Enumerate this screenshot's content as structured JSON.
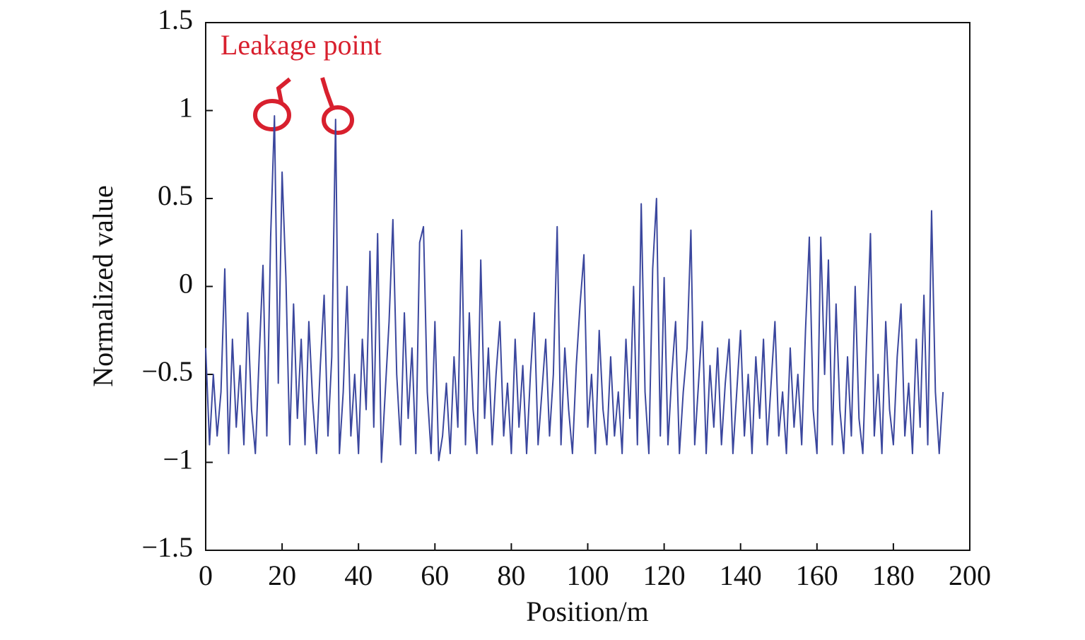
{
  "chart_data": {
    "type": "line",
    "xlabel": "Position/m",
    "ylabel": "Normalized value",
    "annotation": "Leakage point",
    "xlim": [
      0,
      200
    ],
    "xticks": [
      0,
      20,
      40,
      60,
      80,
      100,
      120,
      140,
      160,
      180,
      200
    ],
    "ylim": [
      -1.5,
      1.5
    ],
    "yticks": [
      {
        "value": -1.5,
        "label": "−1.5"
      },
      {
        "value": -1,
        "label": "−1"
      },
      {
        "value": -0.5,
        "label": "−0.5"
      },
      0,
      0.5,
      1,
      1.5
    ],
    "grid": false,
    "series": [
      {
        "color": "#3b479e",
        "x": [
          0,
          1,
          2,
          3,
          4,
          5,
          6,
          7,
          8,
          9,
          10,
          11,
          12,
          13,
          14,
          15,
          16,
          17,
          18,
          19,
          20,
          21,
          22,
          23,
          24,
          25,
          26,
          27,
          28,
          29,
          30,
          31,
          32,
          33,
          34,
          35,
          36,
          37,
          38,
          39,
          40,
          41,
          42,
          43,
          44,
          45,
          46,
          47,
          48,
          49,
          50,
          51,
          52,
          53,
          54,
          55,
          56,
          57,
          58,
          59,
          60,
          61,
          62,
          63,
          64,
          65,
          66,
          67,
          68,
          69,
          70,
          71,
          72,
          73,
          74,
          75,
          76,
          77,
          78,
          79,
          80,
          81,
          82,
          83,
          84,
          85,
          86,
          87,
          88,
          89,
          90,
          91,
          92,
          93,
          94,
          95,
          96,
          97,
          98,
          99,
          100,
          101,
          102,
          103,
          104,
          105,
          106,
          107,
          108,
          109,
          110,
          111,
          112,
          113,
          114,
          115,
          116,
          117,
          118,
          119,
          120,
          121,
          122,
          123,
          124,
          125,
          126,
          127,
          128,
          129,
          130,
          131,
          132,
          133,
          134,
          135,
          136,
          137,
          138,
          139,
          140,
          141,
          142,
          143,
          144,
          145,
          146,
          147,
          148,
          149,
          150,
          151,
          152,
          153,
          154,
          155,
          156,
          157,
          158,
          159,
          160,
          161,
          162,
          163,
          164,
          165,
          166,
          167,
          168,
          169,
          170,
          171,
          172,
          173,
          174,
          175,
          176,
          177,
          178,
          179,
          180,
          181,
          182,
          183,
          184,
          185,
          186,
          187,
          188,
          189,
          190,
          191,
          192,
          193
        ],
        "values": [
          -0.35,
          -0.9,
          -0.5,
          -0.85,
          -0.6,
          0.1,
          -0.95,
          -0.3,
          -0.8,
          -0.45,
          -0.9,
          -0.15,
          -0.7,
          -0.95,
          -0.4,
          0.12,
          -0.85,
          0.28,
          0.97,
          -0.55,
          0.65,
          0.05,
          -0.9,
          -0.1,
          -0.75,
          -0.3,
          -0.9,
          -0.2,
          -0.65,
          -0.95,
          -0.45,
          -0.05,
          -0.85,
          -0.4,
          0.95,
          -0.95,
          -0.6,
          0.0,
          -0.85,
          -0.5,
          -0.95,
          -0.3,
          -0.7,
          0.2,
          -0.8,
          0.3,
          -1.0,
          -0.6,
          -0.2,
          0.38,
          -0.5,
          -0.9,
          -0.15,
          -0.75,
          -0.35,
          -0.95,
          0.25,
          0.34,
          -0.6,
          -0.95,
          -0.2,
          -0.99,
          -0.85,
          -0.55,
          -0.95,
          -0.4,
          -0.8,
          0.32,
          -0.9,
          -0.15,
          -0.7,
          -0.95,
          0.15,
          -0.75,
          -0.35,
          -0.9,
          -0.5,
          -0.2,
          -0.85,
          -0.55,
          -0.95,
          -0.3,
          -0.8,
          -0.45,
          -0.95,
          -0.5,
          -0.15,
          -0.9,
          -0.6,
          -0.3,
          -0.85,
          -0.5,
          0.34,
          -0.9,
          -0.35,
          -0.7,
          -0.95,
          -0.45,
          -0.1,
          0.18,
          -0.8,
          -0.5,
          -0.95,
          -0.25,
          -0.7,
          -0.9,
          -0.4,
          -0.85,
          -0.6,
          -0.95,
          -0.3,
          -0.75,
          0.0,
          -0.9,
          0.47,
          -0.6,
          -0.95,
          0.1,
          0.5,
          -0.85,
          0.05,
          -0.9,
          -0.5,
          -0.2,
          -0.95,
          -0.6,
          -0.35,
          0.32,
          -0.9,
          -0.55,
          -0.2,
          -0.95,
          -0.45,
          -0.8,
          -0.35,
          -0.9,
          -0.55,
          -0.3,
          -0.95,
          -0.6,
          -0.25,
          -0.85,
          -0.5,
          -0.95,
          -0.4,
          -0.75,
          -0.3,
          -0.9,
          -0.55,
          -0.2,
          -0.85,
          -0.6,
          -0.95,
          -0.35,
          -0.8,
          -0.5,
          -0.9,
          -0.25,
          0.28,
          -0.7,
          -0.95,
          0.28,
          -0.5,
          0.15,
          -0.9,
          -0.1,
          -0.7,
          -0.95,
          -0.4,
          -0.85,
          0.0,
          -0.75,
          -0.95,
          -0.3,
          0.3,
          -0.85,
          -0.5,
          -0.95,
          -0.2,
          -0.7,
          -0.9,
          -0.4,
          -0.1,
          -0.85,
          -0.55,
          -0.95,
          -0.3,
          -0.8,
          -0.05,
          -0.9,
          0.43,
          -0.6,
          -0.95,
          -0.6
        ]
      }
    ]
  }
}
